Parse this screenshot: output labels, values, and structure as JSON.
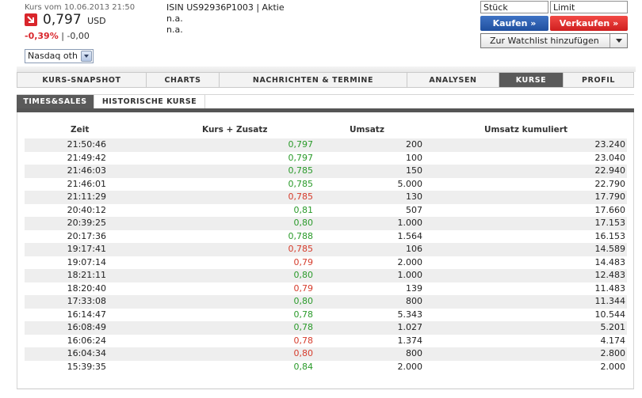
{
  "quote": {
    "date_label": "Kurs vom 10.06.2013 21:50",
    "price": "0,797",
    "currency": "USD",
    "change_pct": "-0,39%",
    "change_sep": " | ",
    "change_abs": "-0,00",
    "exchange_selected": "Nasdaq oth",
    "direction_icon": "arrow-down-icon"
  },
  "instrument": {
    "isin_line": "ISIN US92936P1003 | Aktie",
    "line2": "n.a.",
    "line3": "n.a."
  },
  "order": {
    "qty_placeholder": "Stück",
    "limit_placeholder": "Limit",
    "buy_label": "Kaufen »",
    "sell_label": "Verkaufen »",
    "watchlist_label": "Zur Watchlist hinzufügen"
  },
  "tabs": [
    {
      "label": "KURS-SNAPSHOT",
      "active": false
    },
    {
      "label": "CHARTS",
      "active": false
    },
    {
      "label": "NACHRICHTEN & TERMINE",
      "active": false
    },
    {
      "label": "ANALYSEN",
      "active": false
    },
    {
      "label": "KURSE",
      "active": true
    },
    {
      "label": "PROFIL",
      "active": false
    }
  ],
  "subtabs": [
    {
      "label": "TIMES&SALES",
      "active": true
    },
    {
      "label": "HISTORISCHE KURSE",
      "active": false
    }
  ],
  "table": {
    "headers": {
      "time": "Zeit",
      "price": "Kurs + Zusatz",
      "volume": "Umsatz",
      "cumulative": "Umsatz kumuliert"
    },
    "rows": [
      {
        "time": "21:50:46",
        "price": "0,797",
        "dir": "up",
        "volume": "200",
        "cumulative": "23.240"
      },
      {
        "time": "21:49:42",
        "price": "0,797",
        "dir": "up",
        "volume": "100",
        "cumulative": "23.040"
      },
      {
        "time": "21:46:03",
        "price": "0,785",
        "dir": "up",
        "volume": "150",
        "cumulative": "22.940"
      },
      {
        "time": "21:46:01",
        "price": "0,785",
        "dir": "up",
        "volume": "5.000",
        "cumulative": "22.790"
      },
      {
        "time": "21:11:29",
        "price": "0,785",
        "dir": "down",
        "volume": "130",
        "cumulative": "17.790"
      },
      {
        "time": "20:40:12",
        "price": "0,81",
        "dir": "up",
        "volume": "507",
        "cumulative": "17.660"
      },
      {
        "time": "20:39:25",
        "price": "0,80",
        "dir": "up",
        "volume": "1.000",
        "cumulative": "17.153"
      },
      {
        "time": "20:17:36",
        "price": "0,788",
        "dir": "up",
        "volume": "1.564",
        "cumulative": "16.153"
      },
      {
        "time": "19:17:41",
        "price": "0,785",
        "dir": "down",
        "volume": "106",
        "cumulative": "14.589"
      },
      {
        "time": "19:07:14",
        "price": "0,79",
        "dir": "down",
        "volume": "2.000",
        "cumulative": "14.483"
      },
      {
        "time": "18:21:11",
        "price": "0,80",
        "dir": "up",
        "volume": "1.000",
        "cumulative": "12.483"
      },
      {
        "time": "18:20:40",
        "price": "0,79",
        "dir": "down",
        "volume": "139",
        "cumulative": "11.483"
      },
      {
        "time": "17:33:08",
        "price": "0,80",
        "dir": "up",
        "volume": "800",
        "cumulative": "11.344"
      },
      {
        "time": "16:14:47",
        "price": "0,78",
        "dir": "up",
        "volume": "5.343",
        "cumulative": "10.544"
      },
      {
        "time": "16:08:49",
        "price": "0,78",
        "dir": "up",
        "volume": "1.027",
        "cumulative": "5.201"
      },
      {
        "time": "16:06:24",
        "price": "0,78",
        "dir": "down",
        "volume": "1.374",
        "cumulative": "4.174"
      },
      {
        "time": "16:04:34",
        "price": "0,80",
        "dir": "down",
        "volume": "800",
        "cumulative": "2.800"
      },
      {
        "time": "15:39:35",
        "price": "0,84",
        "dir": "up",
        "volume": "2.000",
        "cumulative": "2.000"
      }
    ]
  },
  "colors": {
    "up": "#2a9a2a",
    "down": "#d63c2c",
    "buy": "#2a5db0",
    "sell": "#e32a26",
    "active_tab": "#5a5a5a"
  }
}
